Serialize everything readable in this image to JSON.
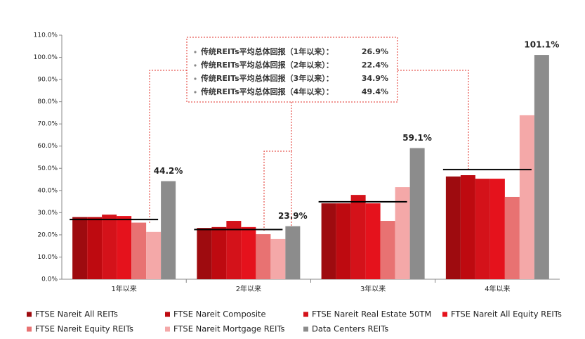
{
  "chart_data": {
    "type": "bar",
    "categories": [
      "1年以来",
      "2年以来",
      "3年以来",
      "4年以来"
    ],
    "series": [
      {
        "name": "FTSE Nareit All REITs",
        "color": "#9e0b0f",
        "values": [
          28.0,
          23.1,
          34.2,
          46.3
        ]
      },
      {
        "name": "FTSE Nareit Composite",
        "color": "#be0a10",
        "values": [
          28.0,
          23.5,
          34.2,
          46.9
        ]
      },
      {
        "name": "FTSE Nareit Real Estate 50TM",
        "color": "#d4121a",
        "values": [
          29.1,
          26.3,
          38.0,
          45.3
        ]
      },
      {
        "name": "FTSE Nareit All Equity REITs",
        "color": "#e5121c",
        "values": [
          28.5,
          23.5,
          34.2,
          45.3
        ]
      },
      {
        "name": "FTSE Nareit Equity REITs",
        "color": "#e87272",
        "values": [
          25.5,
          20.3,
          26.3,
          37.1
        ]
      },
      {
        "name": "FTSE Nareit Mortgage REITs",
        "color": "#f4a8a8",
        "values": [
          21.3,
          18.1,
          41.5,
          73.9
        ]
      },
      {
        "name": "Data Centers REITs",
        "color": "#8c8c8c",
        "values": [
          44.2,
          23.9,
          59.1,
          101.1
        ],
        "value_labels": [
          "44.2%",
          "23.9%",
          "59.1%",
          "101.1%"
        ]
      }
    ],
    "averages": {
      "labels": [
        "传统REITs平均总体回报（1年以来）：",
        "传统REITs平均总体回报（2年以来）：",
        "传统REITs平均总体回报（3年以来）：",
        "传统REITs平均总体回报（4年以来）："
      ],
      "values": [
        26.9,
        22.4,
        34.9,
        49.4
      ],
      "value_labels": [
        "26.9%",
        "22.4%",
        "34.9%",
        "49.4%"
      ],
      "color": "#000000"
    },
    "ylim": [
      0,
      110
    ],
    "yticks": [
      {
        "value": 0,
        "label": "0.0%"
      },
      {
        "value": 10,
        "label": "10.0%"
      },
      {
        "value": 20,
        "label": "20.0%"
      },
      {
        "value": 30,
        "label": "30.0%"
      },
      {
        "value": 40,
        "label": "40.0%"
      },
      {
        "value": 50,
        "label": "50.0%"
      },
      {
        "value": 60,
        "label": "60.0%"
      },
      {
        "value": 70,
        "label": "70.0%"
      },
      {
        "value": 80,
        "label": "80.0%"
      },
      {
        "value": 90,
        "label": "90.0%"
      },
      {
        "value": 100,
        "label": "100.0%"
      },
      {
        "value": 110,
        "label": "110.0%"
      }
    ]
  }
}
